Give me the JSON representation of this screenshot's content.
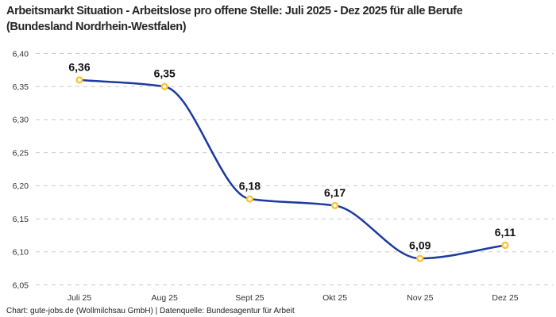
{
  "chart_data": {
    "type": "line",
    "title": "Arbeitsmarkt Situation - Arbeitslose pro offene Stelle: Juli 2025 - Dez 2025 für alle Berufe (Bundesland Nordrhein-Westfalen)",
    "categories": [
      "Juli 25",
      "Aug 25",
      "Sept 25",
      "Okt 25",
      "Nov 25",
      "Dez 25"
    ],
    "values": [
      6.36,
      6.35,
      6.18,
      6.17,
      6.09,
      6.11
    ],
    "point_labels": [
      "6,36",
      "6,35",
      "6,18",
      "6,17",
      "6,09",
      "6,11"
    ],
    "xlabel": "",
    "ylabel": "",
    "ylim": [
      6.05,
      6.4
    ],
    "y_ticks": [
      {
        "value": 6.4,
        "label": "6,40"
      },
      {
        "value": 6.35,
        "label": "6,35"
      },
      {
        "value": 6.3,
        "label": "6,30"
      },
      {
        "value": 6.25,
        "label": "6,25"
      },
      {
        "value": 6.2,
        "label": "6,20"
      },
      {
        "value": 6.15,
        "label": "6,15"
      },
      {
        "value": 6.1,
        "label": "6,10"
      },
      {
        "value": 6.05,
        "label": "6,05"
      }
    ],
    "grid": "horizontal-dashed",
    "legend": "none",
    "curve": "monotone",
    "colors": {
      "line": "#1e3a9c",
      "marker_ring": "#fcc332",
      "marker_fill": "#ffffff",
      "grid": "#cccccc",
      "tick_text": "#333333",
      "title_text": "#262626",
      "point_label_text": "#111111"
    },
    "source_line": "Chart: gute-jobs.de (Wollmilchsau GmbH) | Datenquelle: Bundesagentur für Arbeit"
  }
}
